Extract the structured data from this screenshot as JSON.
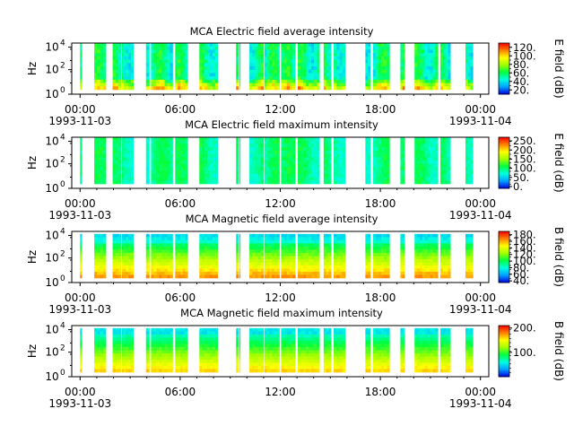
{
  "chart_data": [
    {
      "type": "heatmap",
      "title": "MCA  Electric field average intensity",
      "ylabel": "Hz",
      "yticks": [
        "10",
        "10",
        "10"
      ],
      "yexp": [
        "0",
        "2",
        "4"
      ],
      "x_ticks": [
        "00:00",
        "06:00",
        "12:00",
        "18:00",
        "00:00"
      ],
      "x_dates": [
        "1993-11-03",
        "1993-11-04"
      ],
      "colorbar_label": "E field (dB)",
      "colorbar_ticks": [
        "20.",
        "40.",
        "60.",
        "80.",
        "100.",
        "120."
      ],
      "colorbar_range": [
        10,
        130
      ],
      "colormap": [
        "#0000e0",
        "#00a0ff",
        "#00ffe0",
        "#00ff40",
        "#a0ff00",
        "#ffff00",
        "#ff8000",
        "#ff0000"
      ],
      "style": "electric"
    },
    {
      "type": "heatmap",
      "title": "MCA  Electric field maximum intensity",
      "ylabel": "Hz",
      "yticks": [
        "10",
        "10",
        "10"
      ],
      "yexp": [
        "0",
        "2",
        "4"
      ],
      "x_ticks": [
        "00:00",
        "06:00",
        "12:00",
        "18:00",
        "00:00"
      ],
      "x_dates": [
        "1993-11-03",
        "1993-11-04"
      ],
      "colorbar_label": "E field (dB)",
      "colorbar_ticks": [
        "0.",
        "50.",
        "100.",
        "150.",
        "200.",
        "250."
      ],
      "colorbar_range": [
        -10,
        270
      ],
      "colormap": [
        "#0000e0",
        "#00a0ff",
        "#00ffe0",
        "#00ff40",
        "#a0ff00",
        "#ffff00",
        "#ff8000",
        "#ff0000"
      ],
      "style": "electricmax"
    },
    {
      "type": "heatmap",
      "title": "MCA  Magnetic field average intensity",
      "ylabel": "Hz",
      "yticks": [
        "10",
        "10",
        "10"
      ],
      "yexp": [
        "0",
        "2",
        "4"
      ],
      "x_ticks": [
        "00:00",
        "06:00",
        "12:00",
        "18:00",
        "00:00"
      ],
      "x_dates": [
        "1993-11-03",
        "1993-11-04"
      ],
      "colorbar_label": "B field (dB)",
      "colorbar_ticks": [
        "40.",
        "60.",
        "80.",
        "100.",
        "120.",
        "140.",
        "160.",
        "180."
      ],
      "colorbar_range": [
        35,
        190
      ],
      "colormap": [
        "#0000e0",
        "#00a0ff",
        "#00ffe0",
        "#00ff40",
        "#a0ff00",
        "#ffff00",
        "#ff8000",
        "#ff0000"
      ],
      "style": "magnetic"
    },
    {
      "type": "heatmap",
      "title": "MCA  Magnetic field maximum intensity",
      "ylabel": "Hz",
      "yticks": [
        "10",
        "10",
        "10"
      ],
      "yexp": [
        "0",
        "2",
        "4"
      ],
      "x_ticks": [
        "00:00",
        "06:00",
        "12:00",
        "18:00",
        "00:00"
      ],
      "x_dates": [
        "1993-11-03",
        "1993-11-04"
      ],
      "colorbar_label": "B field (dB)",
      "colorbar_ticks": [
        "100.",
        "200."
      ],
      "colorbar_range": [
        0,
        210
      ],
      "colormap": [
        "#0000e0",
        "#00a0ff",
        "#00ffe0",
        "#00ff40",
        "#a0ff00",
        "#ffff00",
        "#ff8000",
        "#ff0000"
      ],
      "style": "magneticmax"
    }
  ],
  "data_segments_hours": [
    [
      0.0,
      0.1
    ],
    [
      0.85,
      1.55
    ],
    [
      1.95,
      2.45
    ],
    [
      2.5,
      2.75
    ],
    [
      2.75,
      3.2
    ],
    [
      3.95,
      4.15
    ],
    [
      4.25,
      5.55
    ],
    [
      5.7,
      6.45
    ],
    [
      7.15,
      8.25
    ],
    [
      9.35,
      9.5
    ],
    [
      9.55,
      9.6
    ],
    [
      10.15,
      11.0
    ],
    [
      11.05,
      11.95
    ],
    [
      12.05,
      12.9
    ],
    [
      13.05,
      14.35
    ],
    [
      14.6,
      15.05
    ],
    [
      15.2,
      15.9
    ],
    [
      17.1,
      17.4
    ],
    [
      17.55,
      18.55
    ],
    [
      19.2,
      19.45
    ],
    [
      20.05,
      21.45
    ],
    [
      21.6,
      22.2
    ],
    [
      23.1,
      23.55
    ]
  ],
  "x_range_hours": [
    -0.5,
    24.5
  ]
}
